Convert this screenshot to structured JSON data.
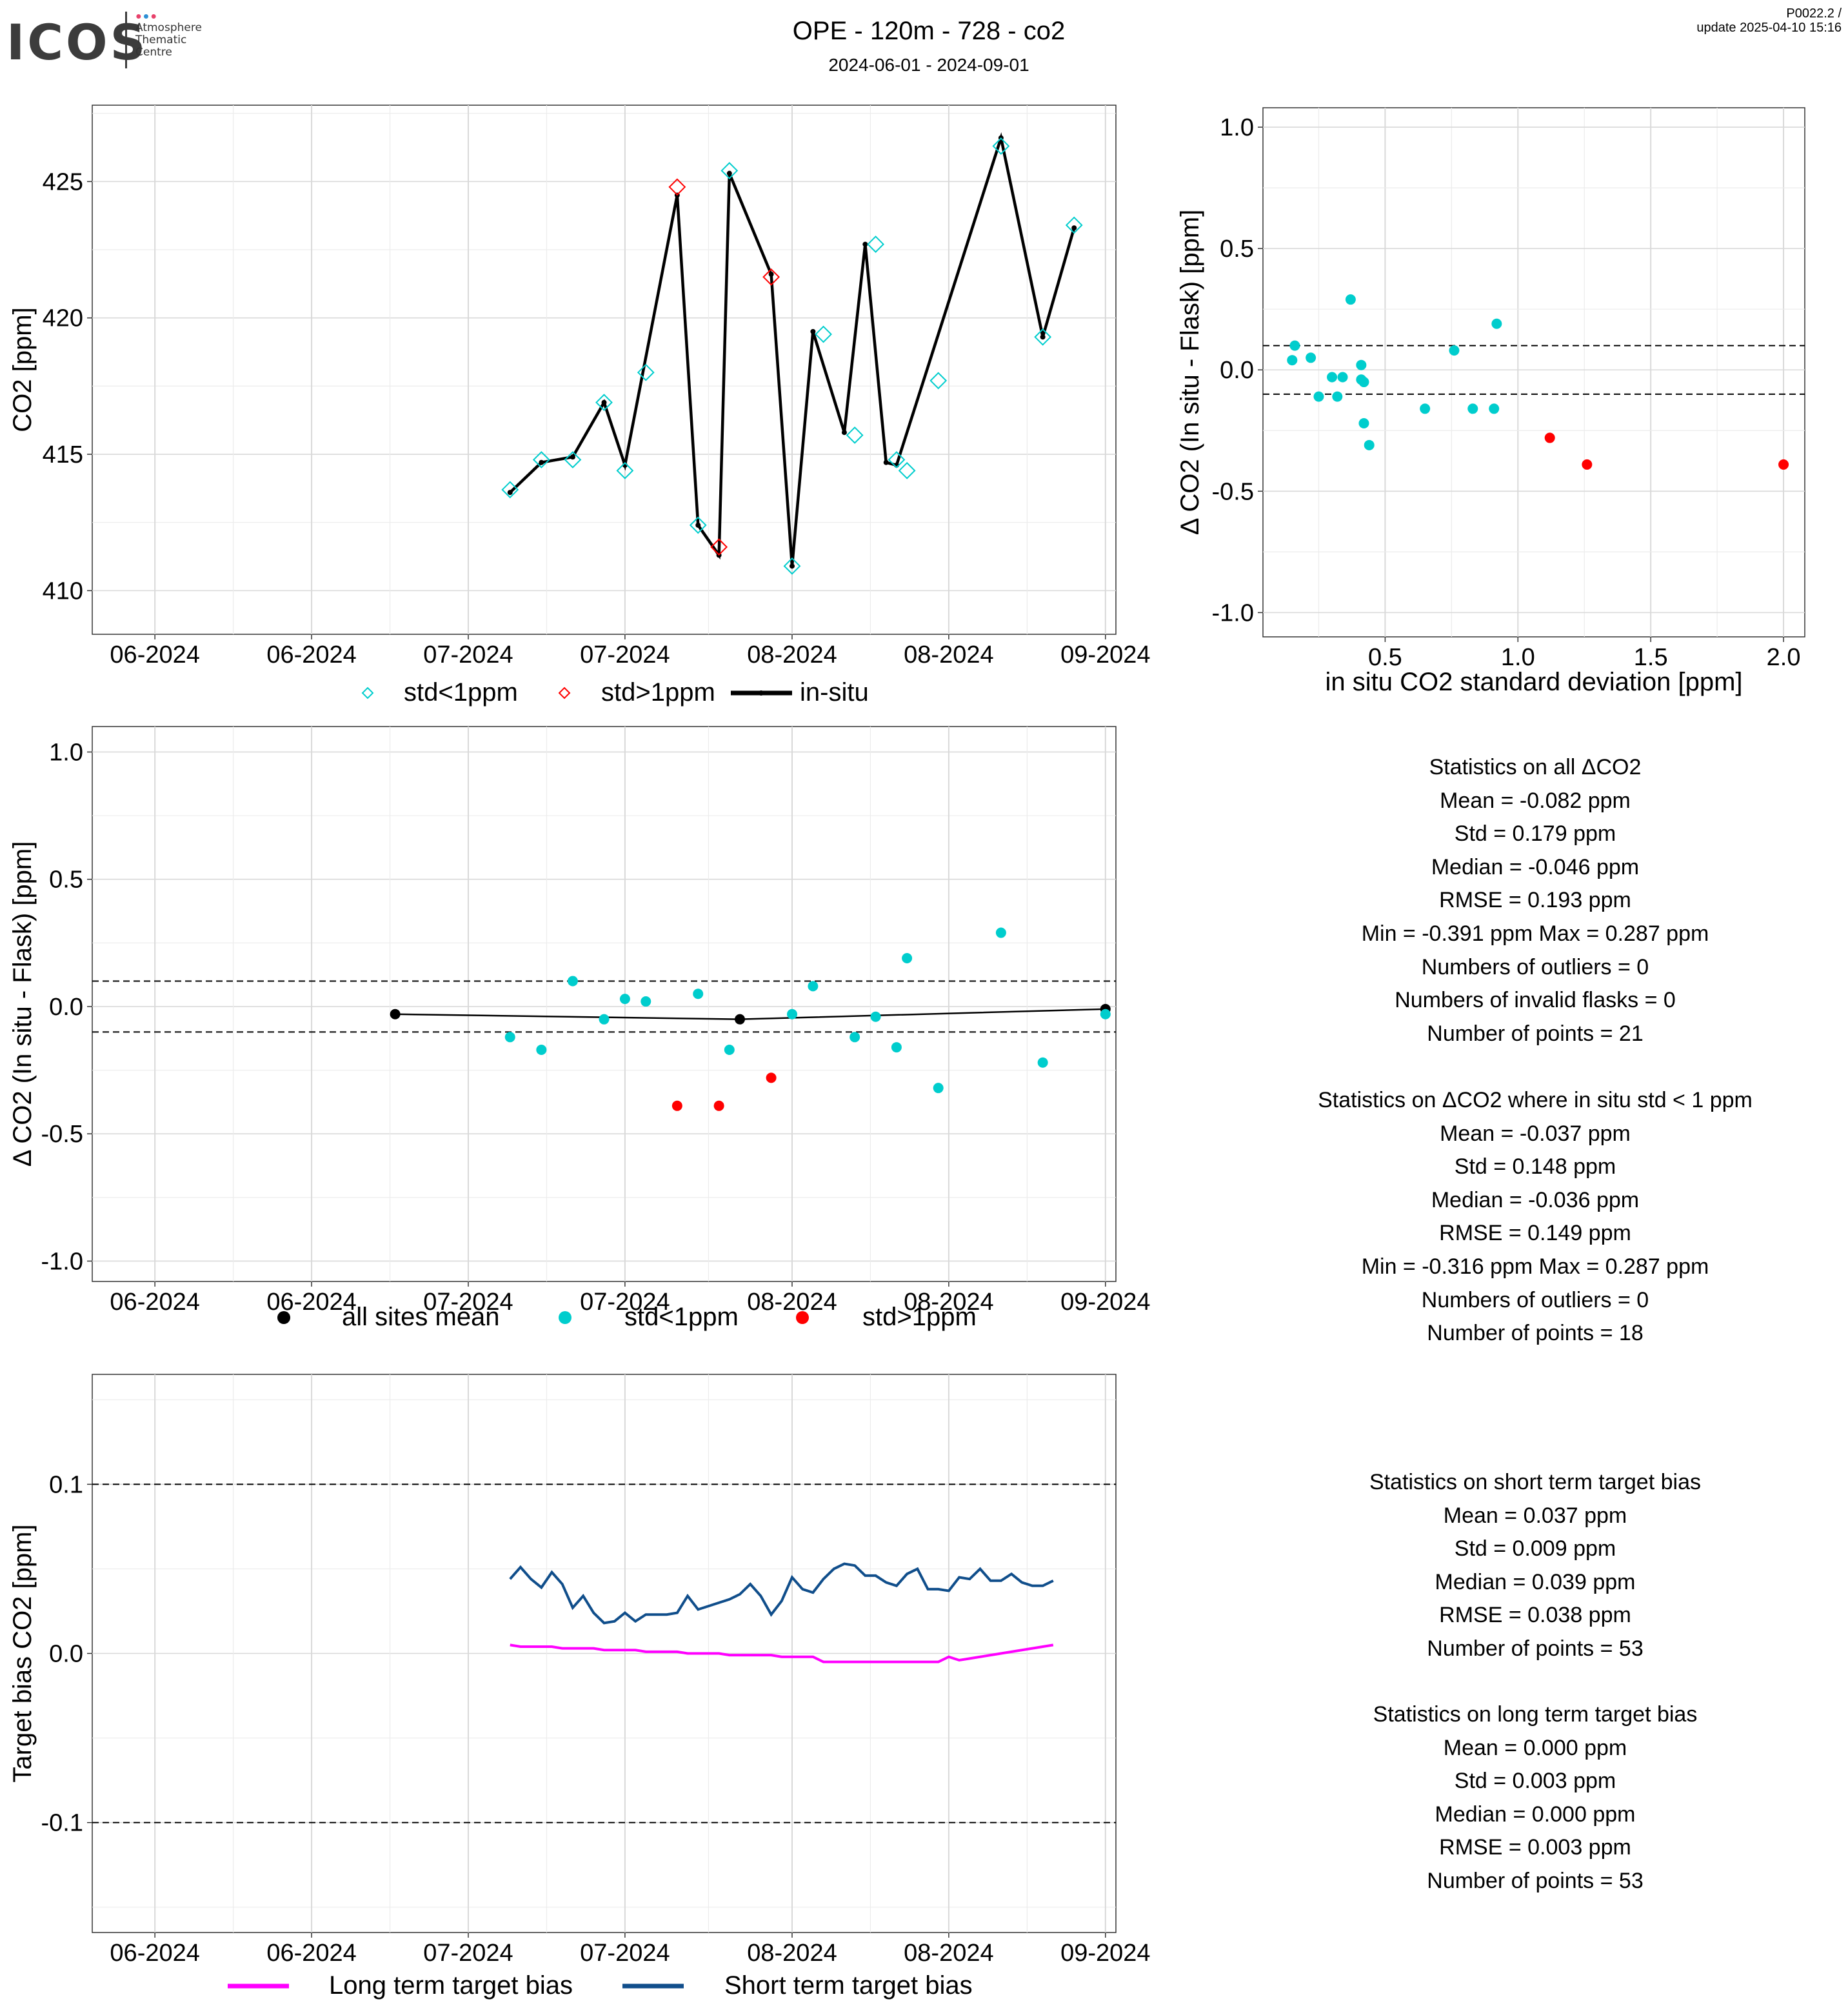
{
  "header": {
    "logo_word": "ICOS",
    "logo_sub": [
      "Atmosphere",
      "Thematic",
      "Centre"
    ],
    "title": "OPE - 120m - 728 - co2",
    "subtitle": "2024-06-01 - 2024-09-01",
    "version_line1": "P0022.2 /",
    "version_line2": "update  2025-04-10 15:16"
  },
  "colors": {
    "cyan": "#00CDCD",
    "red": "#FF0000",
    "black": "#000000",
    "magenta": "#FF00FF",
    "navy": "#104E8B",
    "panel_border": "#333333",
    "grid_major": "#d9d9d9",
    "grid_minor": "#ececec"
  },
  "chart_data": [
    {
      "id": "co2-timeseries",
      "type": "line",
      "ylabel": "CO2 [ppm]",
      "xlabel": "",
      "xlim": [
        "2024-05-26",
        "2024-09-01"
      ],
      "ylim": [
        408.4,
        427.8
      ],
      "yticks": [
        410,
        415,
        420,
        425
      ],
      "ytick_labels": [
        "410",
        "415",
        "420",
        "425"
      ],
      "xticks": [
        "2024-06-01",
        "2024-06-16",
        "2024-07-01",
        "2024-07-16",
        "2024-08-01",
        "2024-08-16",
        "2024-08-31"
      ],
      "xtick_labels": [
        "06-2024",
        "06-2024",
        "07-2024",
        "07-2024",
        "08-2024",
        "08-2024",
        "09-2024"
      ],
      "legend": [
        "std<1ppm",
        "std>1ppm",
        "in-situ"
      ],
      "legend_position": "bottom",
      "insitu_x": [
        "2024-07-05",
        "2024-07-08",
        "2024-07-11",
        "2024-07-14",
        "2024-07-16",
        "2024-07-21",
        "2024-07-23",
        "2024-07-25",
        "2024-07-26",
        "2024-07-30",
        "2024-08-01",
        "2024-08-03",
        "2024-08-06",
        "2024-08-08",
        "2024-08-10",
        "2024-08-11",
        "2024-08-21",
        "2024-08-25",
        "2024-08-28"
      ],
      "insitu_y": [
        413.6,
        414.7,
        414.9,
        416.9,
        414.6,
        424.5,
        412.4,
        411.3,
        425.3,
        421.6,
        410.9,
        419.5,
        415.8,
        422.7,
        414.7,
        414.6,
        426.6,
        419.3,
        423.3
      ],
      "flask_ok_x": [
        "2024-07-05",
        "2024-07-08",
        "2024-07-11",
        "2024-07-14",
        "2024-07-16",
        "2024-07-18",
        "2024-07-23",
        "2024-07-26",
        "2024-08-01",
        "2024-08-04",
        "2024-08-07",
        "2024-08-09",
        "2024-08-11",
        "2024-08-12",
        "2024-08-15",
        "2024-08-21",
        "2024-08-25",
        "2024-08-28"
      ],
      "flask_ok_y": [
        413.7,
        414.8,
        414.8,
        416.9,
        414.4,
        418.0,
        412.4,
        425.4,
        410.9,
        419.4,
        415.7,
        422.7,
        414.8,
        414.4,
        417.7,
        426.3,
        419.3,
        423.4
      ],
      "flask_bad_x": [
        "2024-07-21",
        "2024-07-25",
        "2024-07-30"
      ],
      "flask_bad_y": [
        424.8,
        411.6,
        421.5
      ]
    },
    {
      "id": "delta-vs-std",
      "type": "scatter",
      "xlabel": "in situ CO2 standard deviation [ppm]",
      "ylabel": "Δ CO2 (In situ - Flask) [ppm]",
      "xlim": [
        0.04,
        2.08
      ],
      "ylim": [
        -1.1,
        1.08
      ],
      "xticks": [
        0.5,
        1.0,
        1.5,
        2.0
      ],
      "xtick_labels": [
        "0.5",
        "1.0",
        "1.5",
        "2.0"
      ],
      "yticks": [
        -1.0,
        -0.5,
        0.0,
        0.5,
        1.0
      ],
      "ytick_labels": [
        "-1.0",
        "-0.5",
        "0.0",
        "0.5",
        "1.0"
      ],
      "hlines": [
        0.1,
        -0.1
      ],
      "ok_x": [
        0.15,
        0.16,
        0.22,
        0.25,
        0.3,
        0.32,
        0.34,
        0.37,
        0.41,
        0.41,
        0.42,
        0.42,
        0.44,
        0.65,
        0.76,
        0.83,
        0.91,
        0.92
      ],
      "ok_y": [
        0.04,
        0.1,
        0.05,
        -0.11,
        -0.03,
        -0.11,
        -0.03,
        0.29,
        0.02,
        -0.04,
        -0.22,
        -0.05,
        -0.31,
        -0.16,
        0.08,
        -0.16,
        -0.16,
        0.19
      ],
      "bad_x": [
        1.12,
        1.26,
        2.0
      ],
      "bad_y": [
        -0.28,
        -0.39,
        -0.39
      ]
    },
    {
      "id": "delta-timeseries",
      "type": "scatter",
      "xlabel": "",
      "ylabel": "Δ CO2 (In situ - Flask) [ppm]",
      "xlim": [
        "2024-05-26",
        "2024-09-01"
      ],
      "ylim": [
        -1.08,
        1.1
      ],
      "yticks": [
        -1.0,
        -0.5,
        0.0,
        0.5,
        1.0
      ],
      "ytick_labels": [
        "-1.0",
        "-0.5",
        "0.0",
        "0.5",
        "1.0"
      ],
      "xticks": [
        "2024-06-01",
        "2024-06-16",
        "2024-07-01",
        "2024-07-16",
        "2024-08-01",
        "2024-08-16",
        "2024-08-31"
      ],
      "xtick_labels": [
        "06-2024",
        "06-2024",
        "07-2024",
        "07-2024",
        "08-2024",
        "08-2024",
        "09-2024"
      ],
      "hlines": [
        0.1,
        -0.1
      ],
      "legend": [
        "all sites mean",
        "std<1ppm",
        "std>1ppm"
      ],
      "legend_position": "bottom",
      "mean_x": [
        "2024-06-24",
        "2024-07-27",
        "2024-08-31"
      ],
      "mean_y": [
        -0.03,
        -0.05,
        -0.01
      ],
      "ok_x": [
        "2024-07-05",
        "2024-07-08",
        "2024-07-11",
        "2024-07-14",
        "2024-07-16",
        "2024-07-18",
        "2024-07-23",
        "2024-07-26",
        "2024-08-01",
        "2024-08-03",
        "2024-08-07",
        "2024-08-09",
        "2024-08-11",
        "2024-08-12",
        "2024-08-15",
        "2024-08-21",
        "2024-08-25",
        "2024-08-31"
      ],
      "ok_y": [
        -0.12,
        -0.17,
        0.1,
        -0.05,
        0.03,
        0.02,
        0.05,
        -0.17,
        -0.03,
        0.08,
        -0.12,
        -0.04,
        -0.16,
        0.19,
        -0.32,
        0.29,
        -0.22,
        -0.03
      ],
      "bad_x": [
        "2024-07-21",
        "2024-07-25",
        "2024-07-30"
      ],
      "bad_y": [
        -0.39,
        -0.39,
        -0.28
      ]
    },
    {
      "id": "target-bias",
      "type": "line",
      "xlabel": "",
      "ylabel": "Target bias CO2 [ppm]",
      "xlim": [
        "2024-05-26",
        "2024-09-01"
      ],
      "ylim": [
        -0.165,
        0.165
      ],
      "yticks": [
        -0.1,
        0.0,
        0.1
      ],
      "ytick_labels": [
        "-0.1",
        "0.0",
        "0.1"
      ],
      "xticks": [
        "2024-06-01",
        "2024-06-16",
        "2024-07-01",
        "2024-07-16",
        "2024-08-01",
        "2024-08-16",
        "2024-08-31"
      ],
      "xtick_labels": [
        "06-2024",
        "06-2024",
        "07-2024",
        "07-2024",
        "08-2024",
        "08-2024",
        "09-2024"
      ],
      "hlines": [
        0.1,
        -0.1
      ],
      "legend": [
        "Long term target bias",
        "Short term target bias"
      ],
      "legend_position": "bottom",
      "series": [
        {
          "name": "Short term target bias",
          "x_start": "2024-07-05",
          "x_step_days": 1,
          "values": [
            0.044,
            0.051,
            0.044,
            0.039,
            0.048,
            0.041,
            0.027,
            0.034,
            0.024,
            0.018,
            0.019,
            0.024,
            0.019,
            0.023,
            0.023,
            0.023,
            0.024,
            0.034,
            0.026,
            0.028,
            0.03,
            0.032,
            0.035,
            0.041,
            0.034,
            0.023,
            0.031,
            0.045,
            0.038,
            0.036,
            0.044,
            0.05,
            0.053,
            0.052,
            0.046,
            0.046,
            0.042,
            0.04,
            0.047,
            0.05,
            0.038,
            0.038,
            0.037,
            0.045,
            0.044,
            0.05,
            0.043,
            0.043,
            0.047,
            0.042,
            0.04,
            0.04,
            0.043
          ]
        },
        {
          "name": "Long term target bias",
          "x_start": "2024-07-05",
          "x_step_days": 1,
          "values": [
            0.005,
            0.004,
            0.004,
            0.004,
            0.004,
            0.003,
            0.003,
            0.003,
            0.003,
            0.002,
            0.002,
            0.002,
            0.002,
            0.001,
            0.001,
            0.001,
            0.001,
            0.0,
            0.0,
            0.0,
            0.0,
            -0.001,
            -0.001,
            -0.001,
            -0.001,
            -0.001,
            -0.002,
            -0.002,
            -0.002,
            -0.002,
            -0.005,
            -0.005,
            -0.005,
            -0.005,
            -0.005,
            -0.005,
            -0.005,
            -0.005,
            -0.005,
            -0.005,
            -0.005,
            -0.005,
            -0.002,
            -0.004,
            -0.003,
            -0.002,
            -0.001,
            0.0,
            0.001,
            0.002,
            0.003,
            0.004,
            0.005
          ]
        }
      ]
    }
  ],
  "stats_all": {
    "title": "Statistics on all ΔCO2",
    "mean": "Mean =  -0.082 ppm",
    "std": "Std =  0.179 ppm",
    "median": "Median =  -0.046 ppm",
    "rmse": "RMSE =  0.193 ppm",
    "minmax": "Min =  -0.391 ppm Max =  0.287 ppm",
    "outliers": "Numbers of outliers =  0",
    "invalid": "Numbers of invalid flasks =  0",
    "points": "Number of points =  21"
  },
  "stats_std1": {
    "title": "Statistics on ΔCO2 where in situ std < 1 ppm",
    "mean": "Mean =  -0.037 ppm",
    "std": "Std =  0.148 ppm",
    "median": "Median =  -0.036 ppm",
    "rmse": "RMSE =  0.149 ppm",
    "minmax": "Min =  -0.316 ppm Max =  0.287 ppm",
    "outliers": "Numbers of outliers =  0",
    "points": "Number of points =  18"
  },
  "stats_short": {
    "title": "Statistics on short term target bias",
    "mean": "Mean =  0.037 ppm",
    "std": "Std =  0.009 ppm",
    "median": "Median =  0.039 ppm",
    "rmse": "RMSE =  0.038 ppm",
    "points": "Number of points =  53"
  },
  "stats_long": {
    "title": "Statistics on long term target bias",
    "mean": "Mean =  0.000 ppm",
    "std": "Std =  0.003 ppm",
    "median": "Median =  0.000 ppm",
    "rmse": "RMSE =  0.003 ppm",
    "points": "Number of points =  53"
  }
}
